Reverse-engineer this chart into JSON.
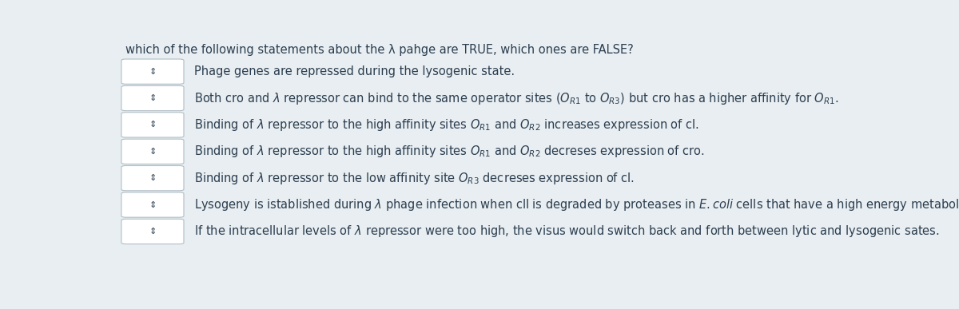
{
  "background_color": "#e8eef1",
  "title": "which of the following statements about the λ pahge are TRUE, which ones are FALSE?",
  "box_color": "#ffffff",
  "box_edge_color": "#b0bec5",
  "text_color": "#2c3e50",
  "arrow_color": "#2c3e50",
  "figsize": [
    12.0,
    3.87
  ],
  "dpi": 100,
  "title_fontsize": 10.5,
  "text_fontsize": 10.5,
  "rows": [
    {
      "plain": "Phage genes are repressed during the lysogenic state.",
      "math": "Phage genes are repressed during the lysogenic state."
    },
    {
      "plain": "Both cro and λ repressor can bind to the same operator sites (OR1 to OR3) but cro has a higher affinity for OR1.",
      "math": "Both cro and $\\lambda$ repressor can bind to the same operator sites ($O_{R1}$ to $O_{R3}$) but cro has a higher affinity for $O_{R1}$."
    },
    {
      "plain": "Binding of λ repressor to the high affinity sites OR1 and OR2 increases expression of cl.",
      "math": "Binding of $\\lambda$ repressor to the high affinity sites $O_{R1}$ and $O_{R2}$ increases expression of cl."
    },
    {
      "plain": "Binding of λ repressor to the high affinity sites OR1 and OR2 decreses expression of cro.",
      "math": "Binding of $\\lambda$ repressor to the high affinity sites $O_{R1}$ and $O_{R2}$ decreses expression of cro."
    },
    {
      "plain": "Binding of λ repressor to the low affinity site OR3 decreses expression of cl.",
      "math": "Binding of $\\lambda$ repressor to the low affinity site $O_{R3}$ decreses expression of cl."
    },
    {
      "plain": "Lysogeny is istablished during λ phage infection when cll is degraded by proteases in E. coli cells that have a high energy metabolism.",
      "math": "Lysogeny is istablished during $\\lambda$ phage infection when cll is degraded by proteases in $\\it{E. coli}$ cells that have a high energy metabolism."
    },
    {
      "plain": "If the intracellular levels of λ repressor were too high, the visus would switch back and forth between lytic and lysogenic sates.",
      "math": "If the intracellular levels of $\\lambda$ repressor were too high, the visus would switch back and forth between lytic and lysogenic sates."
    }
  ]
}
